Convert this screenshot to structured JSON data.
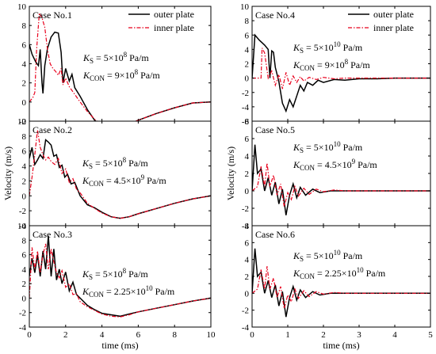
{
  "legend": {
    "outer": "outer plate",
    "inner": "inner plate"
  },
  "colors": {
    "outer": "#000000",
    "inner": "#e8001c",
    "frame": "#000000"
  },
  "columns": [
    {
      "xlabel": "time (ms)",
      "ylabel": "Velocity (m/s)",
      "xlim": [
        0,
        10
      ],
      "xticks": [
        0,
        2,
        4,
        6,
        8,
        10
      ]
    },
    {
      "xlabel": "time (ms)",
      "ylabel": "Velocity (m/s)",
      "xlim": [
        0,
        5
      ],
      "xticks": [
        0,
        1,
        2,
        3,
        4,
        5
      ]
    }
  ],
  "chart_data": [
    {
      "type": "line",
      "panel": "Case No.1",
      "title": "Case No.1",
      "params": {
        "ks_label": "K",
        "ks_sub": "S",
        "ks_value": "= 5×10",
        "ks_exp": "8",
        "ks_unit": " Pa/m",
        "kc_label": "K",
        "kc_sub": "CON",
        "kc_value": "= 9×10",
        "kc_exp": "8",
        "kc_unit": " Pa/m"
      },
      "xlim": [
        0,
        10
      ],
      "ylim": [
        -2,
        10
      ],
      "yticks": [
        -2,
        0,
        2,
        4,
        6,
        8,
        10
      ],
      "legend_position": "top-right",
      "series": [
        {
          "name": "outer plate",
          "style": "solid",
          "x": [
            0,
            0.15,
            0.35,
            0.5,
            0.6,
            0.7,
            0.75,
            0.85,
            1.0,
            1.2,
            1.4,
            1.6,
            1.75,
            1.85,
            2.0,
            2.2,
            2.35,
            2.5,
            2.8,
            3.2,
            3.6,
            4.0,
            4.5,
            5.0,
            5.5,
            6.0,
            7.0,
            8.0,
            9.0,
            10.0
          ],
          "y": [
            6.0,
            5.0,
            4.2,
            3.8,
            5.5,
            2.0,
            0.9,
            3.8,
            5.6,
            6.8,
            7.3,
            7.2,
            5.2,
            2.0,
            3.5,
            2.2,
            2.9,
            1.5,
            0.6,
            -0.8,
            -1.9,
            -2.5,
            -2.7,
            -2.6,
            -2.3,
            -1.9,
            -1.2,
            -0.6,
            -0.1,
            0.0
          ]
        },
        {
          "name": "inner plate",
          "style": "dashdot",
          "x": [
            0,
            0.2,
            0.3,
            0.4,
            0.55,
            0.7,
            0.85,
            1.0,
            1.15,
            1.3,
            1.45,
            1.6,
            1.75,
            1.85,
            2.0,
            2.2,
            2.5,
            2.8,
            3.2,
            3.6,
            4.0,
            4.5,
            5.0,
            5.5,
            6.0,
            7.0,
            8.0,
            9.0,
            10.0
          ],
          "y": [
            0.0,
            0.5,
            1.0,
            5.5,
            9.3,
            8.8,
            7.8,
            5.5,
            4.0,
            3.5,
            3.2,
            2.8,
            3.5,
            1.8,
            2.5,
            1.6,
            0.8,
            0.0,
            -1.0,
            -1.8,
            -2.4,
            -2.6,
            -2.5,
            -2.3,
            -1.9,
            -1.2,
            -0.6,
            -0.1,
            0.0
          ]
        }
      ]
    },
    {
      "type": "line",
      "panel": "Case No.2",
      "title": "Case No.2",
      "params": {
        "ks_label": "K",
        "ks_sub": "S",
        "ks_value": "= 5×10",
        "ks_exp": "8",
        "ks_unit": " Pa/m",
        "kc_label": "K",
        "kc_sub": "CON",
        "kc_value": "= 4.5×10",
        "kc_exp": "9",
        "kc_unit": " Pa/m"
      },
      "xlim": [
        0,
        10
      ],
      "ylim": [
        -4,
        10
      ],
      "yticks": [
        -4,
        -2,
        0,
        2,
        4,
        6,
        8,
        10
      ],
      "series": [
        {
          "name": "outer plate",
          "style": "solid",
          "x": [
            0,
            0.15,
            0.3,
            0.45,
            0.6,
            0.75,
            0.9,
            1.05,
            1.2,
            1.35,
            1.5,
            1.65,
            1.8,
            1.95,
            2.1,
            2.3,
            2.5,
            2.8,
            3.2,
            3.6,
            4.0,
            4.5,
            5.0,
            5.5,
            6.0,
            7.0,
            8.0,
            9.0,
            10.0
          ],
          "y": [
            5.0,
            6.5,
            4.2,
            4.8,
            5.5,
            5.0,
            7.5,
            7.2,
            6.8,
            5.3,
            5.5,
            3.8,
            4.1,
            2.5,
            2.9,
            1.6,
            1.8,
            0.0,
            -1.2,
            -1.6,
            -2.2,
            -2.8,
            -3.0,
            -2.8,
            -2.4,
            -1.7,
            -1.0,
            -0.4,
            0.0
          ]
        },
        {
          "name": "inner plate",
          "style": "dashdot",
          "x": [
            0,
            0.15,
            0.3,
            0.45,
            0.6,
            0.75,
            0.9,
            1.05,
            1.2,
            1.4,
            1.6,
            1.8,
            2.0,
            2.2,
            2.4,
            2.6,
            2.8,
            3.2,
            3.6,
            4.0,
            4.5,
            5.0,
            5.5,
            6.0,
            7.0,
            8.0,
            9.0,
            10.0
          ],
          "y": [
            0.0,
            2.5,
            5.5,
            8.8,
            6.5,
            5.5,
            4.8,
            5.2,
            4.6,
            4.2,
            5.0,
            3.0,
            3.6,
            1.8,
            2.3,
            0.9,
            0.4,
            -1.0,
            -1.7,
            -2.3,
            -2.8,
            -3.0,
            -2.8,
            -2.4,
            -1.7,
            -1.0,
            -0.4,
            0.0
          ]
        }
      ]
    },
    {
      "type": "line",
      "panel": "Case No.3",
      "title": "Case No.3",
      "params": {
        "ks_label": "K",
        "ks_sub": "S",
        "ks_value": "= 5×10",
        "ks_exp": "8",
        "ks_unit": " Pa/m",
        "kc_label": "K",
        "kc_sub": "CON",
        "kc_value": "= 2.25×10",
        "kc_exp": "10",
        "kc_unit": " Pa/m"
      },
      "xlim": [
        0,
        10
      ],
      "ylim": [
        -4,
        10
      ],
      "yticks": [
        -4,
        -2,
        0,
        2,
        4,
        6,
        8,
        10
      ],
      "series": [
        {
          "name": "outer plate",
          "style": "solid",
          "x": [
            0,
            0.15,
            0.3,
            0.45,
            0.6,
            0.75,
            0.9,
            1.05,
            1.2,
            1.35,
            1.5,
            1.65,
            1.8,
            2.0,
            2.2,
            2.4,
            2.6,
            2.8,
            3.2,
            3.6,
            4.0,
            4.5,
            5.0,
            5.5,
            6.0,
            7.0,
            8.0,
            9.0,
            10.0
          ],
          "y": [
            3.0,
            5.5,
            3.5,
            6.0,
            3.0,
            6.5,
            4.0,
            8.6,
            3.0,
            6.8,
            2.5,
            4.0,
            2.0,
            3.6,
            1.0,
            2.2,
            0.5,
            0.0,
            -1.0,
            -1.6,
            -2.1,
            -2.3,
            -2.5,
            -2.2,
            -1.9,
            -1.4,
            -0.9,
            -0.4,
            0.0
          ]
        },
        {
          "name": "inner plate",
          "style": "dashdot",
          "x": [
            0,
            0.15,
            0.3,
            0.45,
            0.6,
            0.75,
            0.9,
            1.05,
            1.2,
            1.35,
            1.5,
            1.65,
            1.8,
            2.0,
            2.2,
            2.4,
            2.6,
            2.8,
            3.2,
            3.6,
            4.0,
            4.5,
            5.0,
            5.5,
            6.0,
            7.0,
            8.0,
            9.0,
            10.0
          ],
          "y": [
            0.0,
            7.0,
            4.0,
            6.5,
            3.5,
            6.0,
            7.5,
            4.0,
            6.8,
            5.0,
            3.5,
            2.8,
            3.8,
            1.5,
            2.0,
            0.5,
            0.6,
            -0.5,
            -1.2,
            -1.7,
            -2.2,
            -2.5,
            -2.6,
            -2.3,
            -1.9,
            -1.4,
            -0.9,
            -0.4,
            0.0
          ]
        }
      ]
    },
    {
      "type": "line",
      "panel": "Case No.4",
      "title": "Case No.4",
      "params": {
        "ks_label": "K",
        "ks_sub": "S",
        "ks_value": "= 5×10",
        "ks_exp": "10",
        "ks_unit": " Pa/m",
        "kc_label": "K",
        "kc_sub": "CON",
        "kc_value": "= 9×10",
        "kc_exp": "8",
        "kc_unit": " Pa/m"
      },
      "xlim": [
        0,
        5
      ],
      "ylim": [
        -6,
        10
      ],
      "yticks": [
        -6,
        -4,
        -2,
        0,
        2,
        4,
        6,
        8,
        10
      ],
      "legend_position": "top-right",
      "series": [
        {
          "name": "outer plate",
          "style": "solid",
          "x": [
            0,
            0.08,
            0.2,
            0.35,
            0.45,
            0.5,
            0.55,
            0.6,
            0.65,
            0.75,
            0.85,
            0.95,
            1.05,
            1.15,
            1.25,
            1.35,
            1.45,
            1.55,
            1.7,
            1.85,
            2.0,
            2.3,
            2.6,
            3.0,
            3.5,
            4.0,
            4.5,
            5.0
          ],
          "y": [
            0.0,
            6.0,
            5.3,
            4.6,
            4.0,
            0.0,
            3.8,
            3.6,
            1.5,
            -0.5,
            -3.5,
            -4.6,
            -3.0,
            -4.0,
            -2.5,
            -1.0,
            -1.8,
            -0.6,
            -1.0,
            -0.3,
            -0.6,
            -0.2,
            -0.3,
            -0.1,
            -0.1,
            0.0,
            0.0,
            0.0
          ]
        },
        {
          "name": "inner plate",
          "style": "dashdot",
          "x": [
            0,
            0.25,
            0.28,
            0.35,
            0.45,
            0.55,
            0.65,
            0.75,
            0.85,
            0.95,
            1.05,
            1.15,
            1.25,
            1.35,
            1.45,
            1.6,
            1.8,
            2.0,
            2.3,
            2.6,
            3.0,
            3.5,
            4.0,
            4.5,
            5.0
          ],
          "y": [
            0.0,
            0.0,
            4.2,
            3.5,
            0.0,
            1.0,
            -1.0,
            0.5,
            -1.5,
            0.8,
            -1.0,
            0.3,
            -0.6,
            0.2,
            -0.4,
            0.1,
            -0.2,
            0.1,
            -0.1,
            0.0,
            0.0,
            0.0,
            0.0,
            0.0,
            0.0
          ]
        }
      ]
    },
    {
      "type": "line",
      "panel": "Case No.5",
      "title": "Case No.5",
      "params": {
        "ks_label": "K",
        "ks_sub": "S",
        "ks_value": "= 5×10",
        "ks_exp": "10",
        "ks_unit": " Pa/m",
        "kc_label": "K",
        "kc_sub": "CON",
        "kc_value": "= 4.5×10",
        "kc_exp": "9",
        "kc_unit": " Pa/m"
      },
      "xlim": [
        0,
        5
      ],
      "ylim": [
        -4,
        8
      ],
      "yticks": [
        -4,
        -2,
        0,
        2,
        4,
        6,
        8
      ],
      "series": [
        {
          "name": "outer plate",
          "style": "solid",
          "x": [
            0,
            0.08,
            0.15,
            0.25,
            0.35,
            0.45,
            0.55,
            0.65,
            0.75,
            0.85,
            0.95,
            1.05,
            1.15,
            1.25,
            1.35,
            1.5,
            1.7,
            1.9,
            2.2,
            2.5,
            3.0,
            3.5,
            4.0,
            4.5,
            5.0
          ],
          "y": [
            0.0,
            5.3,
            2.0,
            2.5,
            0.0,
            1.5,
            -0.5,
            1.0,
            -1.5,
            0.2,
            -2.8,
            -0.5,
            0.8,
            -0.8,
            0.4,
            -0.5,
            0.2,
            -0.2,
            0.0,
            0.0,
            0.0,
            0.0,
            0.0,
            0.0,
            0.0
          ]
        },
        {
          "name": "inner plate",
          "style": "dashdot",
          "x": [
            0,
            0.15,
            0.25,
            0.35,
            0.42,
            0.5,
            0.6,
            0.7,
            0.8,
            0.9,
            1.0,
            1.1,
            1.2,
            1.3,
            1.45,
            1.6,
            1.8,
            2.0,
            2.3,
            2.6,
            3.0,
            3.5,
            4.0,
            4.5,
            5.0
          ],
          "y": [
            0.0,
            0.5,
            2.8,
            0.5,
            3.2,
            0.5,
            1.8,
            -0.5,
            0.8,
            -1.8,
            -0.2,
            -1.0,
            0.5,
            -0.6,
            0.3,
            -0.4,
            0.2,
            -0.1,
            0.1,
            0.0,
            0.0,
            0.0,
            0.0,
            0.0,
            0.0
          ]
        }
      ]
    },
    {
      "type": "line",
      "panel": "Case No.6",
      "title": "Case No.6",
      "params": {
        "ks_label": "K",
        "ks_sub": "S",
        "ks_value": "= 5×10",
        "ks_exp": "10",
        "ks_unit": " Pa/m",
        "kc_label": "K",
        "kc_sub": "CON",
        "kc_value": "= 2.25×10",
        "kc_exp": "10",
        "kc_unit": " Pa/m"
      },
      "xlim": [
        0,
        5
      ],
      "ylim": [
        -4,
        8
      ],
      "yticks": [
        -4,
        -2,
        0,
        2,
        4,
        6,
        8
      ],
      "series": [
        {
          "name": "outer plate",
          "style": "solid",
          "x": [
            0,
            0.08,
            0.15,
            0.25,
            0.35,
            0.45,
            0.55,
            0.65,
            0.75,
            0.85,
            0.95,
            1.05,
            1.15,
            1.25,
            1.35,
            1.5,
            1.7,
            1.9,
            2.2,
            2.5,
            3.0,
            3.5,
            4.0,
            4.5,
            5.0
          ],
          "y": [
            0.0,
            5.3,
            2.0,
            2.5,
            0.0,
            1.5,
            -0.5,
            1.0,
            -1.5,
            0.2,
            -2.8,
            -0.5,
            0.8,
            -0.8,
            0.4,
            -0.5,
            0.2,
            -0.2,
            0.0,
            0.0,
            0.0,
            0.0,
            0.0,
            0.0,
            0.0
          ]
        },
        {
          "name": "inner plate",
          "style": "dashdot",
          "x": [
            0,
            0.15,
            0.25,
            0.35,
            0.42,
            0.5,
            0.6,
            0.7,
            0.8,
            0.9,
            1.0,
            1.1,
            1.2,
            1.3,
            1.45,
            1.6,
            1.8,
            2.0,
            2.3,
            2.6,
            3.0,
            3.5,
            4.0,
            4.5,
            5.0
          ],
          "y": [
            0.0,
            0.5,
            2.8,
            0.5,
            3.2,
            0.5,
            1.8,
            -0.5,
            0.8,
            -1.8,
            -0.2,
            -1.0,
            0.5,
            -0.6,
            0.3,
            -0.4,
            0.2,
            -0.1,
            0.1,
            0.0,
            0.0,
            0.0,
            0.0,
            0.0,
            0.0
          ]
        }
      ]
    }
  ]
}
